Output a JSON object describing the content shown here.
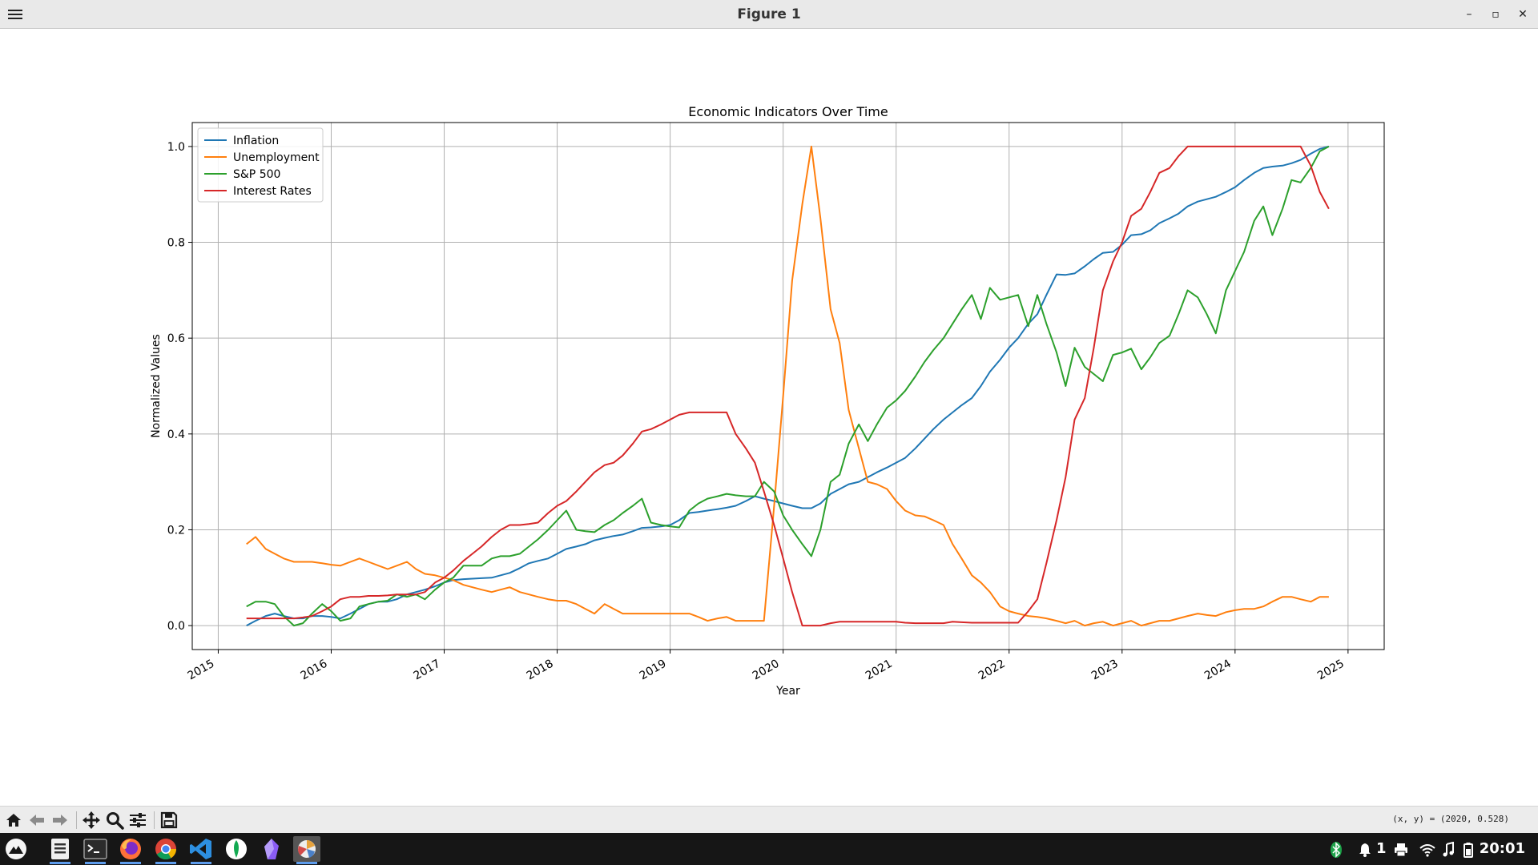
{
  "window": {
    "title": "Figure 1"
  },
  "chart_data": {
    "type": "line",
    "title": "Economic Indicators Over Time",
    "xlabel": "Year",
    "ylabel": "Normalized Values",
    "xlim": [
      2014.77,
      2025.32
    ],
    "ylim": [
      -0.05,
      1.05
    ],
    "xticks": [
      "2015",
      "2016",
      "2017",
      "2018",
      "2019",
      "2020",
      "2021",
      "2022",
      "2023",
      "2024",
      "2025"
    ],
    "yticks": [
      "0.0",
      "0.2",
      "0.4",
      "0.6",
      "0.8",
      "1.0"
    ],
    "grid": true,
    "legend_position": "top-left",
    "x": [
      2015.25,
      2015.33,
      2015.42,
      2015.5,
      2015.58,
      2015.67,
      2015.75,
      2015.83,
      2015.92,
      2016.0,
      2016.08,
      2016.17,
      2016.25,
      2016.33,
      2016.42,
      2016.5,
      2016.58,
      2016.67,
      2016.75,
      2016.83,
      2016.92,
      2017.0,
      2017.08,
      2017.17,
      2017.25,
      2017.33,
      2017.42,
      2017.5,
      2017.58,
      2017.67,
      2017.75,
      2017.83,
      2017.92,
      2018.0,
      2018.08,
      2018.17,
      2018.25,
      2018.33,
      2018.42,
      2018.5,
      2018.58,
      2018.67,
      2018.75,
      2018.83,
      2018.92,
      2019.0,
      2019.08,
      2019.17,
      2019.25,
      2019.33,
      2019.42,
      2019.5,
      2019.58,
      2019.67,
      2019.75,
      2019.83,
      2019.92,
      2020.0,
      2020.08,
      2020.17,
      2020.25,
      2020.33,
      2020.42,
      2020.5,
      2020.58,
      2020.67,
      2020.75,
      2020.83,
      2020.92,
      2021.0,
      2021.08,
      2021.17,
      2021.25,
      2021.33,
      2021.42,
      2021.5,
      2021.58,
      2021.67,
      2021.75,
      2021.83,
      2021.92,
      2022.0,
      2022.08,
      2022.17,
      2022.25,
      2022.33,
      2022.42,
      2022.5,
      2022.58,
      2022.67,
      2022.75,
      2022.83,
      2022.92,
      2023.0,
      2023.08,
      2023.17,
      2023.25,
      2023.33,
      2023.42,
      2023.5,
      2023.58,
      2023.67,
      2023.75,
      2023.83,
      2023.92,
      2024.0,
      2024.08,
      2024.17,
      2024.25,
      2024.33,
      2024.42,
      2024.5,
      2024.58,
      2024.67,
      2024.75,
      2024.83
    ],
    "series": [
      {
        "name": "Inflation",
        "color": "#1f77b4",
        "values": [
          0.0,
          0.01,
          0.02,
          0.025,
          0.02,
          0.015,
          0.015,
          0.02,
          0.02,
          0.018,
          0.015,
          0.025,
          0.035,
          0.045,
          0.05,
          0.05,
          0.055,
          0.065,
          0.07,
          0.075,
          0.082,
          0.09,
          0.095,
          0.097,
          0.098,
          0.099,
          0.1,
          0.105,
          0.11,
          0.12,
          0.13,
          0.135,
          0.14,
          0.15,
          0.16,
          0.165,
          0.17,
          0.178,
          0.183,
          0.187,
          0.19,
          0.197,
          0.204,
          0.205,
          0.207,
          0.21,
          0.22,
          0.235,
          0.237,
          0.24,
          0.243,
          0.246,
          0.25,
          0.26,
          0.27,
          0.265,
          0.26,
          0.255,
          0.25,
          0.245,
          0.245,
          0.255,
          0.275,
          0.285,
          0.295,
          0.3,
          0.31,
          0.32,
          0.33,
          0.34,
          0.35,
          0.37,
          0.39,
          0.41,
          0.43,
          0.445,
          0.46,
          0.475,
          0.5,
          0.53,
          0.555,
          0.58,
          0.6,
          0.63,
          0.65,
          0.69,
          0.733,
          0.732,
          0.735,
          0.75,
          0.765,
          0.778,
          0.78,
          0.795,
          0.815,
          0.817,
          0.825,
          0.84,
          0.85,
          0.86,
          0.875,
          0.885,
          0.89,
          0.895,
          0.905,
          0.915,
          0.93,
          0.945,
          0.955,
          0.958,
          0.96,
          0.965,
          0.972,
          0.985,
          0.995,
          1.0
        ]
      },
      {
        "name": "Unemployment",
        "color": "#ff7f0e",
        "values": [
          0.17,
          0.185,
          0.16,
          0.15,
          0.14,
          0.133,
          0.133,
          0.133,
          0.13,
          0.127,
          0.125,
          0.133,
          0.14,
          0.133,
          0.125,
          0.118,
          0.125,
          0.133,
          0.118,
          0.108,
          0.105,
          0.1,
          0.095,
          0.085,
          0.08,
          0.075,
          0.07,
          0.075,
          0.08,
          0.07,
          0.065,
          0.06,
          0.055,
          0.052,
          0.052,
          0.045,
          0.035,
          0.025,
          0.045,
          0.035,
          0.025,
          0.025,
          0.025,
          0.025,
          0.025,
          0.025,
          0.025,
          0.025,
          0.018,
          0.01,
          0.015,
          0.018,
          0.01,
          0.01,
          0.01,
          0.01,
          0.25,
          0.48,
          0.72,
          0.88,
          1.0,
          0.85,
          0.66,
          0.59,
          0.45,
          0.37,
          0.3,
          0.295,
          0.285,
          0.26,
          0.24,
          0.23,
          0.228,
          0.22,
          0.21,
          0.17,
          0.14,
          0.105,
          0.09,
          0.07,
          0.04,
          0.03,
          0.025,
          0.02,
          0.018,
          0.015,
          0.01,
          0.005,
          0.01,
          0.0,
          0.005,
          0.008,
          0.0,
          0.005,
          0.01,
          0.0,
          0.005,
          0.01,
          0.01,
          0.015,
          0.02,
          0.025,
          0.022,
          0.02,
          0.028,
          0.032,
          0.035,
          0.035,
          0.04,
          0.05,
          0.06,
          0.06,
          0.055,
          0.05,
          0.06,
          0.06
        ]
      },
      {
        "name": "S&P 500",
        "color": "#2ca02c",
        "values": [
          0.04,
          0.05,
          0.05,
          0.045,
          0.02,
          0.0,
          0.005,
          0.025,
          0.045,
          0.03,
          0.01,
          0.015,
          0.04,
          0.045,
          0.05,
          0.052,
          0.065,
          0.06,
          0.065,
          0.055,
          0.075,
          0.09,
          0.1,
          0.125,
          0.125,
          0.125,
          0.14,
          0.145,
          0.145,
          0.15,
          0.165,
          0.18,
          0.2,
          0.22,
          0.24,
          0.2,
          0.197,
          0.195,
          0.21,
          0.22,
          0.235,
          0.25,
          0.265,
          0.215,
          0.21,
          0.207,
          0.205,
          0.24,
          0.255,
          0.265,
          0.27,
          0.275,
          0.272,
          0.27,
          0.27,
          0.3,
          0.28,
          0.23,
          0.2,
          0.17,
          0.145,
          0.2,
          0.3,
          0.315,
          0.38,
          0.42,
          0.385,
          0.42,
          0.455,
          0.47,
          0.49,
          0.52,
          0.55,
          0.575,
          0.6,
          0.63,
          0.66,
          0.69,
          0.64,
          0.705,
          0.68,
          0.685,
          0.69,
          0.625,
          0.69,
          0.63,
          0.57,
          0.5,
          0.58,
          0.54,
          0.525,
          0.51,
          0.565,
          0.57,
          0.578,
          0.535,
          0.56,
          0.59,
          0.605,
          0.65,
          0.7,
          0.685,
          0.65,
          0.61,
          0.7,
          0.74,
          0.78,
          0.845,
          0.875,
          0.815,
          0.87,
          0.93,
          0.925,
          0.955,
          0.99,
          1.0
        ]
      },
      {
        "name": "Interest Rates",
        "color": "#d62728",
        "values": [
          0.015,
          0.015,
          0.015,
          0.015,
          0.015,
          0.015,
          0.017,
          0.02,
          0.03,
          0.04,
          0.055,
          0.06,
          0.06,
          0.062,
          0.062,
          0.063,
          0.065,
          0.065,
          0.065,
          0.07,
          0.09,
          0.1,
          0.115,
          0.135,
          0.15,
          0.165,
          0.185,
          0.2,
          0.21,
          0.21,
          0.212,
          0.215,
          0.235,
          0.25,
          0.26,
          0.28,
          0.3,
          0.32,
          0.335,
          0.34,
          0.355,
          0.38,
          0.405,
          0.41,
          0.42,
          0.43,
          0.44,
          0.445,
          0.445,
          0.445,
          0.445,
          0.445,
          0.4,
          0.37,
          0.34,
          0.28,
          0.21,
          0.14,
          0.07,
          0.0,
          0.0,
          0.0,
          0.005,
          0.008,
          0.008,
          0.008,
          0.008,
          0.008,
          0.008,
          0.008,
          0.006,
          0.005,
          0.005,
          0.005,
          0.005,
          0.008,
          0.007,
          0.006,
          0.006,
          0.006,
          0.006,
          0.006,
          0.006,
          0.03,
          0.055,
          0.13,
          0.22,
          0.31,
          0.43,
          0.475,
          0.58,
          0.7,
          0.76,
          0.8,
          0.855,
          0.87,
          0.905,
          0.945,
          0.955,
          0.98,
          1.0,
          1.0,
          1.0,
          1.0,
          1.0,
          1.0,
          1.0,
          1.0,
          1.0,
          1.0,
          1.0,
          1.0,
          1.0,
          0.96,
          0.905,
          0.87
        ]
      }
    ]
  },
  "toolbar": {
    "buttons": [
      {
        "name": "home-button",
        "icon": "home-icon"
      },
      {
        "name": "back-button",
        "icon": "arrow-left-icon"
      },
      {
        "name": "forward-button",
        "icon": "arrow-right-icon"
      },
      {
        "name": "pan-button",
        "icon": "move-icon"
      },
      {
        "name": "zoom-button",
        "icon": "magnifier-icon"
      },
      {
        "name": "configure-subplots-button",
        "icon": "sliders-icon"
      },
      {
        "name": "save-button",
        "icon": "floppy-icon"
      }
    ],
    "coords": "(x, y) = (2020, 0.528)"
  },
  "taskbar": {
    "apps": [
      "launcher-icon",
      "files-icon",
      "terminal-icon",
      "firefox-icon",
      "chrome-icon",
      "vscode-icon",
      "mongodb-icon",
      "obsidian-icon",
      "figure-app-icon"
    ],
    "tray": {
      "notification_count": "1",
      "time": "20:01"
    }
  }
}
